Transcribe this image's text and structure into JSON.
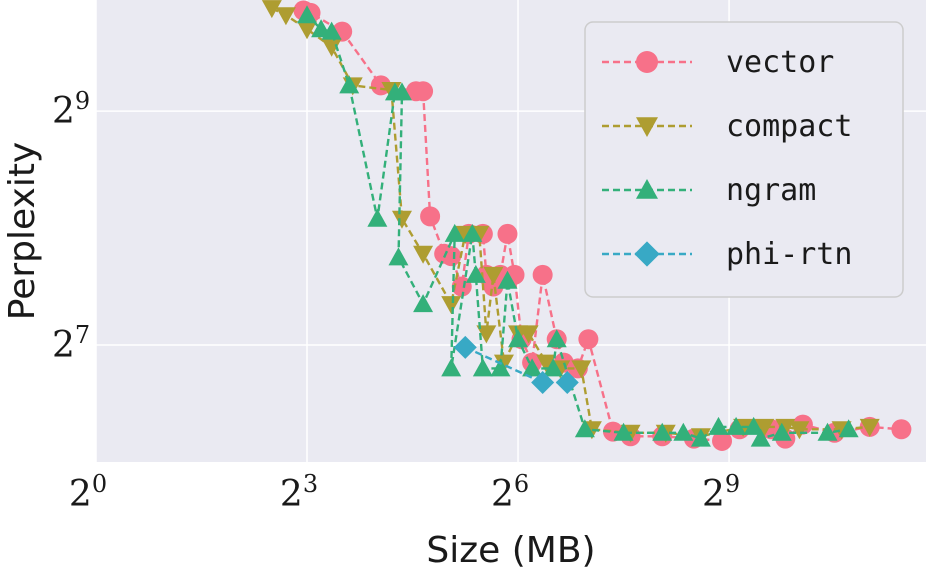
{
  "chart_data": {
    "type": "line",
    "title": "",
    "xlabel": "Size (MB)",
    "ylabel": "Perplexity",
    "xscale": "log2",
    "yscale": "log2",
    "xlim_log2": [
      0,
      11.8
    ],
    "ylim_log2": [
      6.0,
      9.95
    ],
    "xticks": [
      {
        "base": "2",
        "exp": "0",
        "log2": 0
      },
      {
        "base": "2",
        "exp": "3",
        "log2": 3
      },
      {
        "base": "2",
        "exp": "6",
        "log2": 6
      },
      {
        "base": "2",
        "exp": "9",
        "log2": 9
      }
    ],
    "yticks": [
      {
        "base": "2",
        "exp": "7",
        "log2": 7
      },
      {
        "base": "2",
        "exp": "9",
        "log2": 9
      }
    ],
    "grid": true,
    "legend_position": "top-right",
    "series": [
      {
        "name": "vector",
        "color": "#f77189",
        "marker": "circle",
        "points_log2": [
          [
            2.95,
            9.86
          ],
          [
            3.05,
            9.84
          ],
          [
            3.5,
            9.68
          ],
          [
            4.05,
            9.22
          ],
          [
            4.55,
            9.17
          ],
          [
            4.65,
            9.17
          ],
          [
            4.75,
            8.1
          ],
          [
            4.95,
            7.78
          ],
          [
            5.05,
            7.76
          ],
          [
            5.2,
            7.5
          ],
          [
            5.3,
            7.95
          ],
          [
            5.5,
            7.95
          ],
          [
            5.55,
            7.6
          ],
          [
            5.65,
            7.5
          ],
          [
            5.75,
            7.6
          ],
          [
            5.85,
            7.95
          ],
          [
            5.95,
            7.6
          ],
          [
            6.05,
            7.05
          ],
          [
            6.2,
            6.85
          ],
          [
            6.35,
            7.6
          ],
          [
            6.55,
            7.05
          ],
          [
            6.65,
            6.85
          ],
          [
            6.85,
            6.8
          ],
          [
            7.0,
            7.05
          ],
          [
            7.35,
            6.26
          ],
          [
            7.6,
            6.22
          ],
          [
            8.05,
            6.22
          ],
          [
            8.5,
            6.2
          ],
          [
            8.9,
            6.18
          ],
          [
            9.15,
            6.28
          ],
          [
            9.6,
            6.28
          ],
          [
            9.8,
            6.2
          ],
          [
            10.05,
            6.32
          ],
          [
            10.5,
            6.25
          ],
          [
            11.0,
            6.3
          ],
          [
            11.45,
            6.28
          ]
        ]
      },
      {
        "name": "compact",
        "color": "#ae9d31",
        "marker": "triangle-down",
        "points_log2": [
          [
            2.5,
            9.88
          ],
          [
            2.7,
            9.82
          ],
          [
            3.0,
            9.7
          ],
          [
            3.35,
            9.55
          ],
          [
            3.65,
            9.22
          ],
          [
            4.2,
            9.18
          ],
          [
            4.35,
            8.08
          ],
          [
            4.65,
            7.78
          ],
          [
            5.05,
            7.35
          ],
          [
            5.25,
            7.95
          ],
          [
            5.45,
            7.95
          ],
          [
            5.55,
            7.1
          ],
          [
            5.65,
            7.6
          ],
          [
            5.8,
            6.85
          ],
          [
            6.0,
            7.1
          ],
          [
            6.15,
            7.1
          ],
          [
            6.4,
            6.85
          ],
          [
            6.6,
            6.8
          ],
          [
            6.9,
            6.8
          ],
          [
            7.05,
            6.28
          ],
          [
            7.6,
            6.25
          ],
          [
            8.1,
            6.25
          ],
          [
            8.6,
            6.22
          ],
          [
            9.2,
            6.3
          ],
          [
            9.5,
            6.3
          ],
          [
            9.8,
            6.3
          ],
          [
            10.0,
            6.28
          ],
          [
            10.6,
            6.28
          ],
          [
            11.0,
            6.3
          ]
        ]
      },
      {
        "name": "ngram",
        "color": "#33b07a",
        "marker": "triangle-up",
        "points_log2": [
          [
            3.0,
            9.82
          ],
          [
            3.2,
            9.7
          ],
          [
            3.35,
            9.68
          ],
          [
            3.6,
            9.22
          ],
          [
            4.0,
            8.08
          ],
          [
            4.25,
            9.16
          ],
          [
            4.35,
            9.16
          ],
          [
            4.3,
            7.75
          ],
          [
            4.65,
            7.35
          ],
          [
            5.1,
            7.95
          ],
          [
            5.05,
            6.8
          ],
          [
            5.35,
            7.95
          ],
          [
            5.4,
            7.6
          ],
          [
            5.5,
            6.8
          ],
          [
            5.75,
            6.8
          ],
          [
            5.85,
            7.55
          ],
          [
            6.0,
            7.05
          ],
          [
            6.2,
            6.8
          ],
          [
            6.5,
            6.8
          ],
          [
            6.55,
            7.05
          ],
          [
            6.95,
            6.28
          ],
          [
            7.5,
            6.25
          ],
          [
            8.05,
            6.25
          ],
          [
            8.35,
            6.25
          ],
          [
            8.6,
            6.2
          ],
          [
            8.85,
            6.3
          ],
          [
            9.1,
            6.3
          ],
          [
            9.35,
            6.3
          ],
          [
            9.45,
            6.2
          ],
          [
            9.75,
            6.25
          ],
          [
            10.4,
            6.25
          ],
          [
            10.7,
            6.28
          ]
        ]
      },
      {
        "name": "phi-rtn",
        "color": "#38a9c5",
        "marker": "diamond",
        "points_log2": [
          [
            5.25,
            6.98
          ],
          [
            6.35,
            6.68
          ],
          [
            6.7,
            6.68
          ]
        ]
      }
    ]
  }
}
